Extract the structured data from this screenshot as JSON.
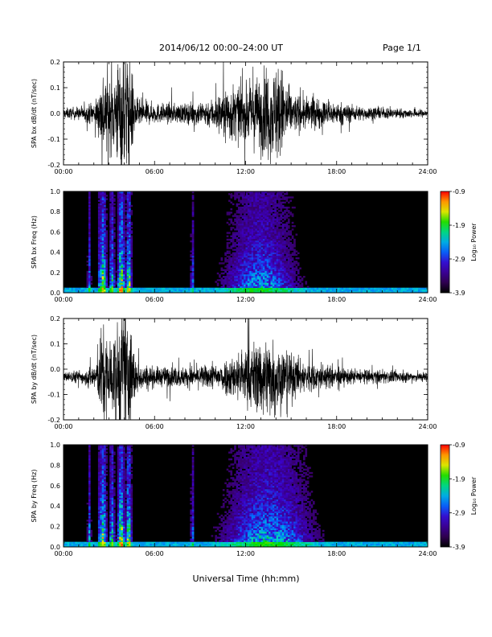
{
  "header": {
    "title": "2014/06/12  00:00–24:00 UT",
    "page": "Page 1/1"
  },
  "xlabel": "Universal Time (hh:mm)",
  "chart_data": [
    {
      "type": "line",
      "ylabel": "SPA bx dB/dt (nT/sec)",
      "xlim": [
        0,
        24
      ],
      "ylim": [
        -0.2,
        0.2
      ],
      "x_ticks": [
        "00:00",
        "06:00",
        "12:00",
        "18:00",
        "24:00"
      ],
      "y_ticks": [
        "-0.2",
        "-0.1",
        "0.0",
        "0.1",
        "0.2"
      ],
      "baseline": 0.0,
      "activity": [
        {
          "t": 0.0,
          "amp": 0.02
        },
        {
          "t": 1.5,
          "amp": 0.03
        },
        {
          "t": 2.2,
          "amp": 0.06
        },
        {
          "t": 2.6,
          "amp": 0.18
        },
        {
          "t": 3.2,
          "amp": 0.14
        },
        {
          "t": 3.7,
          "amp": 0.25
        },
        {
          "t": 4.3,
          "amp": 0.25
        },
        {
          "t": 4.8,
          "amp": 0.06
        },
        {
          "t": 6.0,
          "amp": 0.04
        },
        {
          "t": 8.0,
          "amp": 0.04
        },
        {
          "t": 9.8,
          "amp": 0.06
        },
        {
          "t": 11.0,
          "amp": 0.12
        },
        {
          "t": 12.0,
          "amp": 0.1
        },
        {
          "t": 13.0,
          "amp": 0.16
        },
        {
          "t": 14.3,
          "amp": 0.2
        },
        {
          "t": 15.0,
          "amp": 0.08
        },
        {
          "t": 16.5,
          "amp": 0.06
        },
        {
          "t": 18.5,
          "amp": 0.04
        },
        {
          "t": 20.0,
          "amp": 0.025
        },
        {
          "t": 24.0,
          "amp": 0.015
        }
      ]
    },
    {
      "type": "heatmap",
      "ylabel": "SPA bx Freq (Hz)",
      "xlim": [
        0,
        24
      ],
      "ylim": [
        0.0,
        1.0
      ],
      "x_ticks": [
        "00:00",
        "06:00",
        "12:00",
        "18:00",
        "24:00"
      ],
      "y_ticks": [
        "0.0",
        "0.2",
        "0.4",
        "0.6",
        "0.8",
        "1.0"
      ],
      "colorbar": {
        "label": "Log₁₀ Power",
        "ticks": [
          "-0.9",
          "-1.9",
          "-2.9",
          "-3.9"
        ],
        "range": [
          -3.9,
          -0.9
        ]
      },
      "active_bands": [
        {
          "t": 1.7,
          "width": 0.12,
          "level": 0.55
        },
        {
          "t": 2.4,
          "width": 0.12,
          "level": 0.65
        },
        {
          "t": 2.6,
          "width": 0.25,
          "level": 0.85
        },
        {
          "t": 3.2,
          "width": 0.18,
          "level": 0.7
        },
        {
          "t": 3.8,
          "width": 0.25,
          "level": 0.9
        },
        {
          "t": 4.3,
          "width": 0.2,
          "level": 0.85
        },
        {
          "t": 8.5,
          "width": 0.12,
          "level": 0.5
        },
        {
          "t": 13.0,
          "width": 2.5,
          "level": 0.55
        }
      ]
    },
    {
      "type": "line",
      "ylabel": "SPA by dB/dt (nT/sec)",
      "xlim": [
        0,
        24
      ],
      "ylim": [
        -0.2,
        0.2
      ],
      "x_ticks": [
        "00:00",
        "06:00",
        "12:00",
        "18:00",
        "24:00"
      ],
      "y_ticks": [
        "-0.2",
        "-0.1",
        "0.0",
        "0.1",
        "0.2"
      ],
      "baseline": -0.03,
      "activity": [
        {
          "t": 0.0,
          "amp": 0.02
        },
        {
          "t": 1.5,
          "amp": 0.03
        },
        {
          "t": 2.2,
          "amp": 0.07
        },
        {
          "t": 2.6,
          "amp": 0.2
        },
        {
          "t": 3.2,
          "amp": 0.16
        },
        {
          "t": 3.7,
          "amp": 0.25
        },
        {
          "t": 4.3,
          "amp": 0.25
        },
        {
          "t": 4.8,
          "amp": 0.06
        },
        {
          "t": 6.0,
          "amp": 0.04
        },
        {
          "t": 8.0,
          "amp": 0.04
        },
        {
          "t": 10.0,
          "amp": 0.05
        },
        {
          "t": 11.5,
          "amp": 0.1
        },
        {
          "t": 12.5,
          "amp": 0.14
        },
        {
          "t": 13.3,
          "amp": 0.17
        },
        {
          "t": 14.3,
          "amp": 0.14
        },
        {
          "t": 15.5,
          "amp": 0.07
        },
        {
          "t": 17.0,
          "amp": 0.05
        },
        {
          "t": 19.0,
          "amp": 0.03
        },
        {
          "t": 24.0,
          "amp": 0.02
        }
      ]
    },
    {
      "type": "heatmap",
      "ylabel": "SPA by Freq (Hz)",
      "xlim": [
        0,
        24
      ],
      "ylim": [
        0.0,
        1.0
      ],
      "x_ticks": [
        "00:00",
        "06:00",
        "12:00",
        "18:00",
        "24:00"
      ],
      "y_ticks": [
        "0.0",
        "0.2",
        "0.4",
        "0.6",
        "0.8",
        "1.0"
      ],
      "colorbar": {
        "label": "Log₁₀ Power",
        "ticks": [
          "-0.9",
          "-1.9",
          "-2.9",
          "-3.9"
        ],
        "range": [
          -3.9,
          -0.9
        ]
      },
      "active_bands": [
        {
          "t": 1.7,
          "width": 0.12,
          "level": 0.55
        },
        {
          "t": 2.4,
          "width": 0.12,
          "level": 0.65
        },
        {
          "t": 2.6,
          "width": 0.25,
          "level": 0.85
        },
        {
          "t": 3.2,
          "width": 0.18,
          "level": 0.7
        },
        {
          "t": 3.8,
          "width": 0.25,
          "level": 0.9
        },
        {
          "t": 4.3,
          "width": 0.2,
          "level": 0.85
        },
        {
          "t": 8.5,
          "width": 0.12,
          "level": 0.5
        },
        {
          "t": 13.5,
          "width": 3.0,
          "level": 0.6
        }
      ]
    }
  ]
}
